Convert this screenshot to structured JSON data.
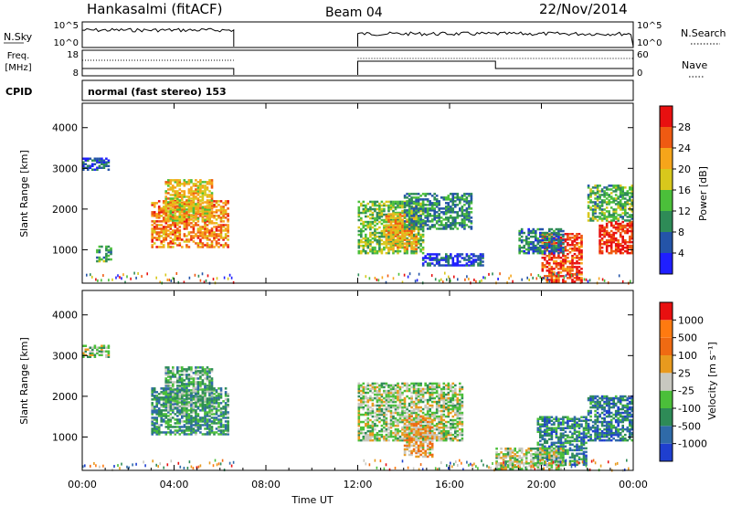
{
  "header": {
    "title": "Hankasalmi (fitACF)",
    "beam": "Beam 04",
    "date": "22/Nov/2014"
  },
  "top_panels": {
    "nsky": {
      "left_label": "N.Sky",
      "right_label": "N.Search",
      "left_ticks": [
        "10^5",
        "10^0"
      ],
      "right_ticks": [
        "10^5",
        "10^0"
      ]
    },
    "freq": {
      "left_label_1": "Freq.",
      "left_label_2": "[MHz]",
      "right_label": "Nave",
      "left_ticks": [
        "18",
        "8"
      ],
      "right_ticks": [
        "60",
        "0"
      ]
    },
    "cpid": {
      "label": "CPID",
      "program": "normal (fast stereo) 153"
    }
  },
  "chart_data": [
    {
      "type": "heatmap",
      "panel": "power",
      "ylabel": "Slant Range [km]",
      "ylim": [
        180,
        4600
      ],
      "yticks": [
        "1000",
        "2000",
        "3000",
        "4000"
      ],
      "xlim": [
        0,
        24
      ],
      "colorbar_label": "Power [dB]",
      "colorbar_ticks": [
        "4",
        "8",
        "12",
        "16",
        "20",
        "24",
        "28"
      ],
      "colors": [
        "#1f1fff",
        "#2454a8",
        "#2e8b57",
        "#4bbf3a",
        "#d8c81c",
        "#f6a51a",
        "#ef5a12",
        "#e81010"
      ],
      "scale": "0 to 30 dB",
      "regions": [
        {
          "t": [
            0.0,
            1.1
          ],
          "r": [
            2950,
            3250
          ],
          "level": 0.2
        },
        {
          "t": [
            0.6,
            1.3
          ],
          "r": [
            700,
            1100
          ],
          "level": 0.35
        },
        {
          "t": [
            3.0,
            6.3
          ],
          "r": [
            1050,
            2200
          ],
          "level": 0.75
        },
        {
          "t": [
            3.6,
            5.6
          ],
          "r": [
            1700,
            2700
          ],
          "level": 0.6
        },
        {
          "t": [
            12.0,
            14.8
          ],
          "r": [
            900,
            2200
          ],
          "level": 0.45
        },
        {
          "t": [
            13.2,
            14.5
          ],
          "r": [
            1000,
            1900
          ],
          "level": 0.7
        },
        {
          "t": [
            14.0,
            17.0
          ],
          "r": [
            1500,
            2400
          ],
          "level": 0.3
        },
        {
          "t": [
            14.8,
            17.5
          ],
          "r": [
            600,
            900
          ],
          "level": 0.15
        },
        {
          "t": [
            20.0,
            21.8
          ],
          "r": [
            200,
            1400
          ],
          "level": 0.85
        },
        {
          "t": [
            22.5,
            24.0
          ],
          "r": [
            900,
            1700
          ],
          "level": 0.9
        },
        {
          "t": [
            22.0,
            24.0
          ],
          "r": [
            1700,
            2600
          ],
          "level": 0.4
        },
        {
          "t": [
            19.0,
            21.0
          ],
          "r": [
            900,
            1500
          ],
          "level": 0.25
        }
      ]
    },
    {
      "type": "heatmap",
      "panel": "velocity",
      "ylabel": "Slant Range [km]",
      "ylim": [
        180,
        4600
      ],
      "yticks": [
        "1000",
        "2000",
        "3000",
        "4000"
      ],
      "xlim": [
        0,
        24
      ],
      "xticks": [
        "00:00",
        "04:00",
        "08:00",
        "12:00",
        "16:00",
        "20:00",
        "00:00"
      ],
      "xlabel": "Time UT",
      "colorbar_label": "Velocity [m s⁻¹]",
      "colorbar_ticks": [
        "1000",
        "500",
        "100",
        "25",
        "-25",
        "-100",
        "-500",
        "-1000"
      ],
      "colors": [
        "#1f3fcf",
        "#2f6aa8",
        "#2e8b57",
        "#4bbf3a",
        "#c8c8c0",
        "#e89a1e",
        "#ef6a12",
        "#ff7a10",
        "#e81010"
      ],
      "regions": [
        {
          "t": [
            0.0,
            1.1
          ],
          "r": [
            2950,
            3250
          ],
          "level": 0.45
        },
        {
          "t": [
            3.0,
            6.3
          ],
          "r": [
            1050,
            2200
          ],
          "level": 0.3
        },
        {
          "t": [
            3.6,
            5.6
          ],
          "r": [
            1700,
            2700
          ],
          "level": 0.35
        },
        {
          "t": [
            12.0,
            16.5
          ],
          "r": [
            900,
            2300
          ],
          "level": 0.45
        },
        {
          "t": [
            14.0,
            15.2
          ],
          "r": [
            500,
            1500
          ],
          "level": 0.6
        },
        {
          "t": [
            19.8,
            22.0
          ],
          "r": [
            300,
            1500
          ],
          "level": 0.25
        },
        {
          "t": [
            22.0,
            24.0
          ],
          "r": [
            900,
            2000
          ],
          "level": 0.2
        },
        {
          "t": [
            18.0,
            21.0
          ],
          "r": [
            200,
            700
          ],
          "level": 0.45
        }
      ]
    }
  ]
}
